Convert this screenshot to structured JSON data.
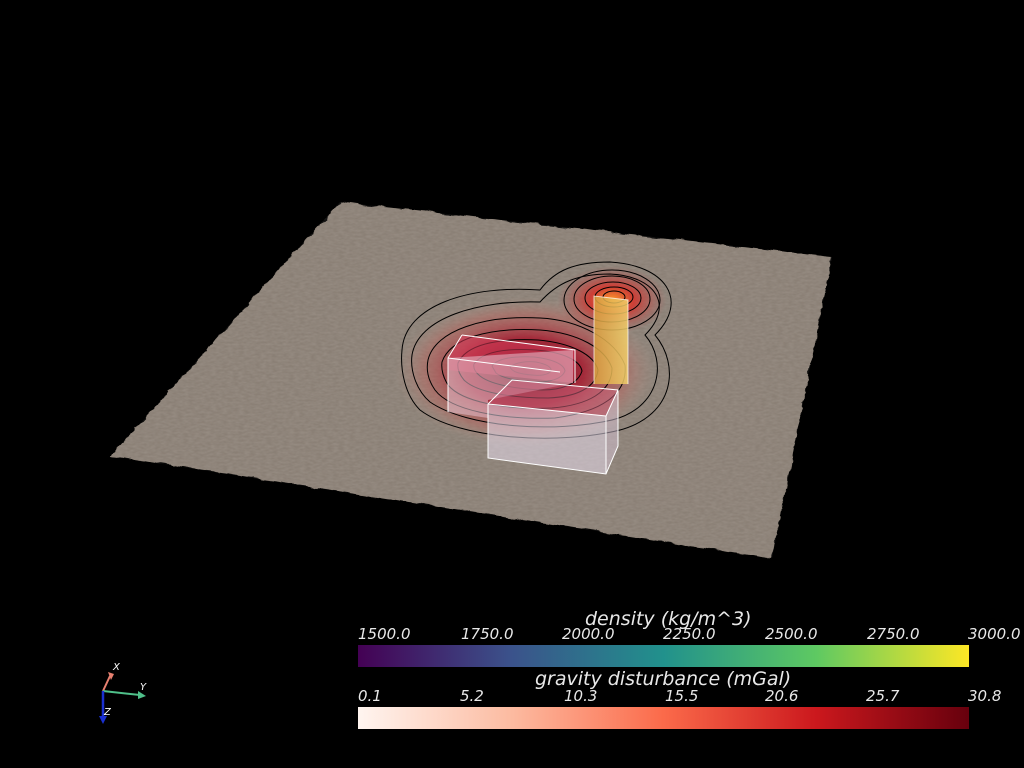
{
  "colorbars": {
    "density": {
      "title": "density (kg/m^3)",
      "ticks": [
        "1500.0",
        "1750.0",
        "2000.0",
        "2250.0",
        "2500.0",
        "2750.0",
        "3000.0"
      ],
      "colormap": "viridis",
      "stops": [
        "#440154",
        "#3b528b",
        "#21918c",
        "#5ec962",
        "#fde725"
      ]
    },
    "gravity": {
      "title": "gravity disturbance (mGal)",
      "ticks": [
        "0.1",
        "5.2",
        "10.3",
        "15.5",
        "20.6",
        "25.7",
        "30.8"
      ],
      "colormap": "reds",
      "stops": [
        "#fff5f0",
        "#fcbba1",
        "#fb6a4a",
        "#cb181d",
        "#67000d"
      ]
    }
  },
  "axes": {
    "x": "X",
    "y": "Y",
    "z": "Z"
  },
  "colors": {
    "background": "#000000",
    "terrain": "#8a7f74",
    "contour": "#000000",
    "prism_edge": "#ffffff"
  }
}
